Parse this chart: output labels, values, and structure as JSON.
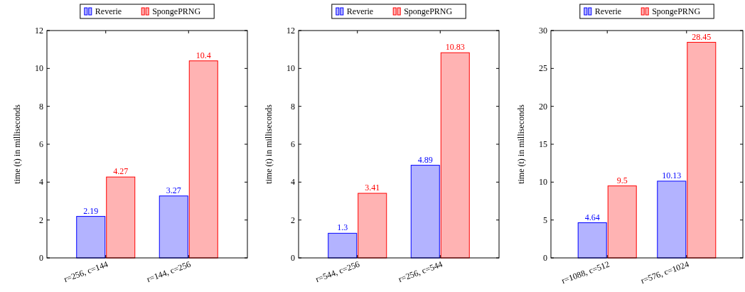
{
  "chart_data": [
    {
      "type": "bar",
      "categories": [
        "r=256, c=144",
        "r=144, c=256"
      ],
      "ylabel": "time (t) in milliseconds",
      "ylim": [
        0,
        12
      ],
      "yticks": [
        0,
        2,
        4,
        6,
        8,
        10,
        12
      ],
      "legend": "top",
      "data_labels": true,
      "grid": false,
      "series": [
        {
          "name": "Reverie",
          "color": "#b3b3ff",
          "values": [
            2.19,
            3.27
          ]
        },
        {
          "name": "SpongePRNG",
          "color": "#ffb3b3",
          "values": [
            4.27,
            10.4
          ]
        }
      ]
    },
    {
      "type": "bar",
      "categories": [
        "r=544, c=256",
        "r=256, c=544"
      ],
      "ylabel": "time (t) in milliseconds",
      "ylim": [
        0,
        12
      ],
      "yticks": [
        0,
        2,
        4,
        6,
        8,
        10,
        12
      ],
      "legend": "top",
      "data_labels": true,
      "grid": false,
      "series": [
        {
          "name": "Reverie",
          "color": "#b3b3ff",
          "values": [
            1.3,
            4.89
          ]
        },
        {
          "name": "SpongePRNG",
          "color": "#ffb3b3",
          "values": [
            3.41,
            10.83
          ]
        }
      ]
    },
    {
      "type": "bar",
      "categories": [
        "r=1088, c=512",
        "r=576, c=1024"
      ],
      "ylabel": "time (t) in milliseconds",
      "ylim": [
        0,
        30
      ],
      "yticks": [
        0,
        5,
        10,
        15,
        20,
        25,
        30
      ],
      "legend": "top",
      "data_labels": true,
      "grid": false,
      "series": [
        {
          "name": "Reverie",
          "color": "#b3b3ff",
          "values": [
            4.64,
            10.13
          ]
        },
        {
          "name": "SpongePRNG",
          "color": "#ffb3b3",
          "values": [
            9.5,
            28.45
          ]
        }
      ]
    }
  ]
}
